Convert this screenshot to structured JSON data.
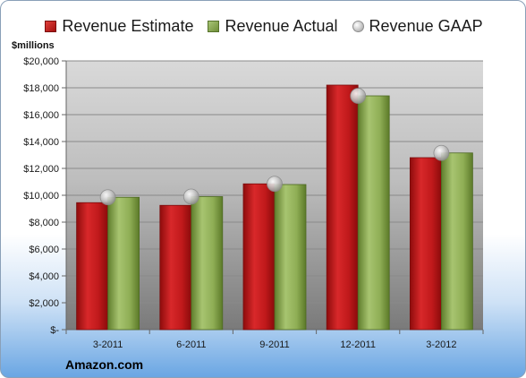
{
  "chart_data": {
    "type": "bar",
    "unit_label": "$millions",
    "source": "Amazon.com",
    "categories": [
      "3-2011",
      "6-2011",
      "9-2011",
      "12-2011",
      "3-2012"
    ],
    "series": [
      {
        "name": "Revenue Estimate",
        "kind": "bar",
        "color": "#c0191b",
        "values": [
          9450,
          9250,
          10850,
          18200,
          12800
        ]
      },
      {
        "name": "Revenue Actual",
        "kind": "bar",
        "color": "#8fae55",
        "values": [
          9850,
          9900,
          10800,
          17400,
          13150
        ]
      },
      {
        "name": "Revenue GAAP",
        "kind": "marker",
        "color": "#b9b9b9",
        "values": [
          9850,
          9900,
          10850,
          17400,
          13150
        ]
      }
    ],
    "y_ticks": [
      "$-",
      "$2,000",
      "$4,000",
      "$6,000",
      "$8,000",
      "$10,000",
      "$12,000",
      "$14,000",
      "$16,000",
      "$18,000",
      "$20,000"
    ],
    "ylim": [
      0,
      20000
    ],
    "grid": true,
    "legend_position": "top"
  },
  "legend": [
    {
      "label": "Revenue Estimate",
      "icon": "red-bar-swatch"
    },
    {
      "label": "Revenue Actual",
      "icon": "green-bar-swatch"
    },
    {
      "label": "Revenue GAAP",
      "icon": "gray-sphere-marker"
    }
  ]
}
